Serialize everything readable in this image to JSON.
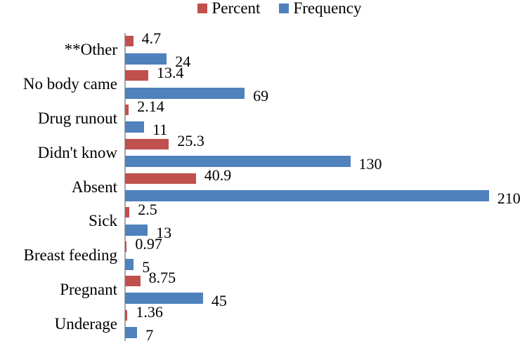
{
  "legend": {
    "items": [
      {
        "label": "Percent",
        "color": "#C0504D"
      },
      {
        "label": "Frequency",
        "color": "#4F81BD"
      }
    ]
  },
  "chart_data": {
    "type": "bar",
    "orientation": "horizontal",
    "title": "",
    "xlabel": "",
    "ylabel": "",
    "grid": false,
    "legend_position": "top-center",
    "xlim": [
      0,
      232
    ],
    "categories": [
      "**Other",
      "No body came",
      "Drug runout",
      "Didn't know",
      "Absent",
      "Sick",
      "Breast feeding",
      "Pregnant",
      "Underage"
    ],
    "series": [
      {
        "name": "Percent",
        "color": "#C0504D",
        "values": [
          4.7,
          13.4,
          2.14,
          25.3,
          40.9,
          2.5,
          0.97,
          8.75,
          1.36
        ]
      },
      {
        "name": "Frequency",
        "color": "#4F81BD",
        "values": [
          24,
          69,
          11,
          130,
          210,
          13,
          5,
          45,
          7
        ]
      }
    ]
  },
  "colors": {
    "axis_line": "#a8a8a8",
    "text": "#000000",
    "background": "#ffffff"
  }
}
